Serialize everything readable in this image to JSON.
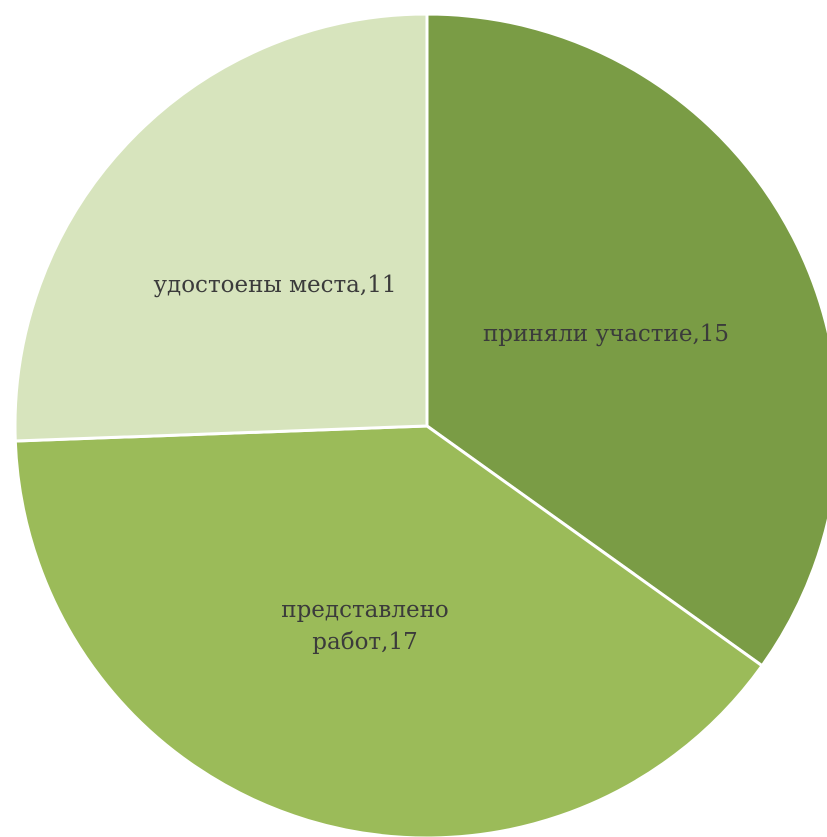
{
  "chart_data": {
    "type": "pie",
    "start_angle_deg": 0,
    "direction": "clockwise",
    "slices": [
      {
        "label_lines": [
          "приняли участие,15"
        ],
        "category": "приняли участие",
        "value": 15,
        "color": "#7a9c45"
      },
      {
        "label_lines": [
          "представлено",
          "работ,17"
        ],
        "category": "представлено работ",
        "value": 17,
        "color": "#9bbb59"
      },
      {
        "label_lines": [
          "удостоены места,11"
        ],
        "category": "удостоены места",
        "value": 11,
        "color": "#d7e4bd"
      }
    ]
  }
}
